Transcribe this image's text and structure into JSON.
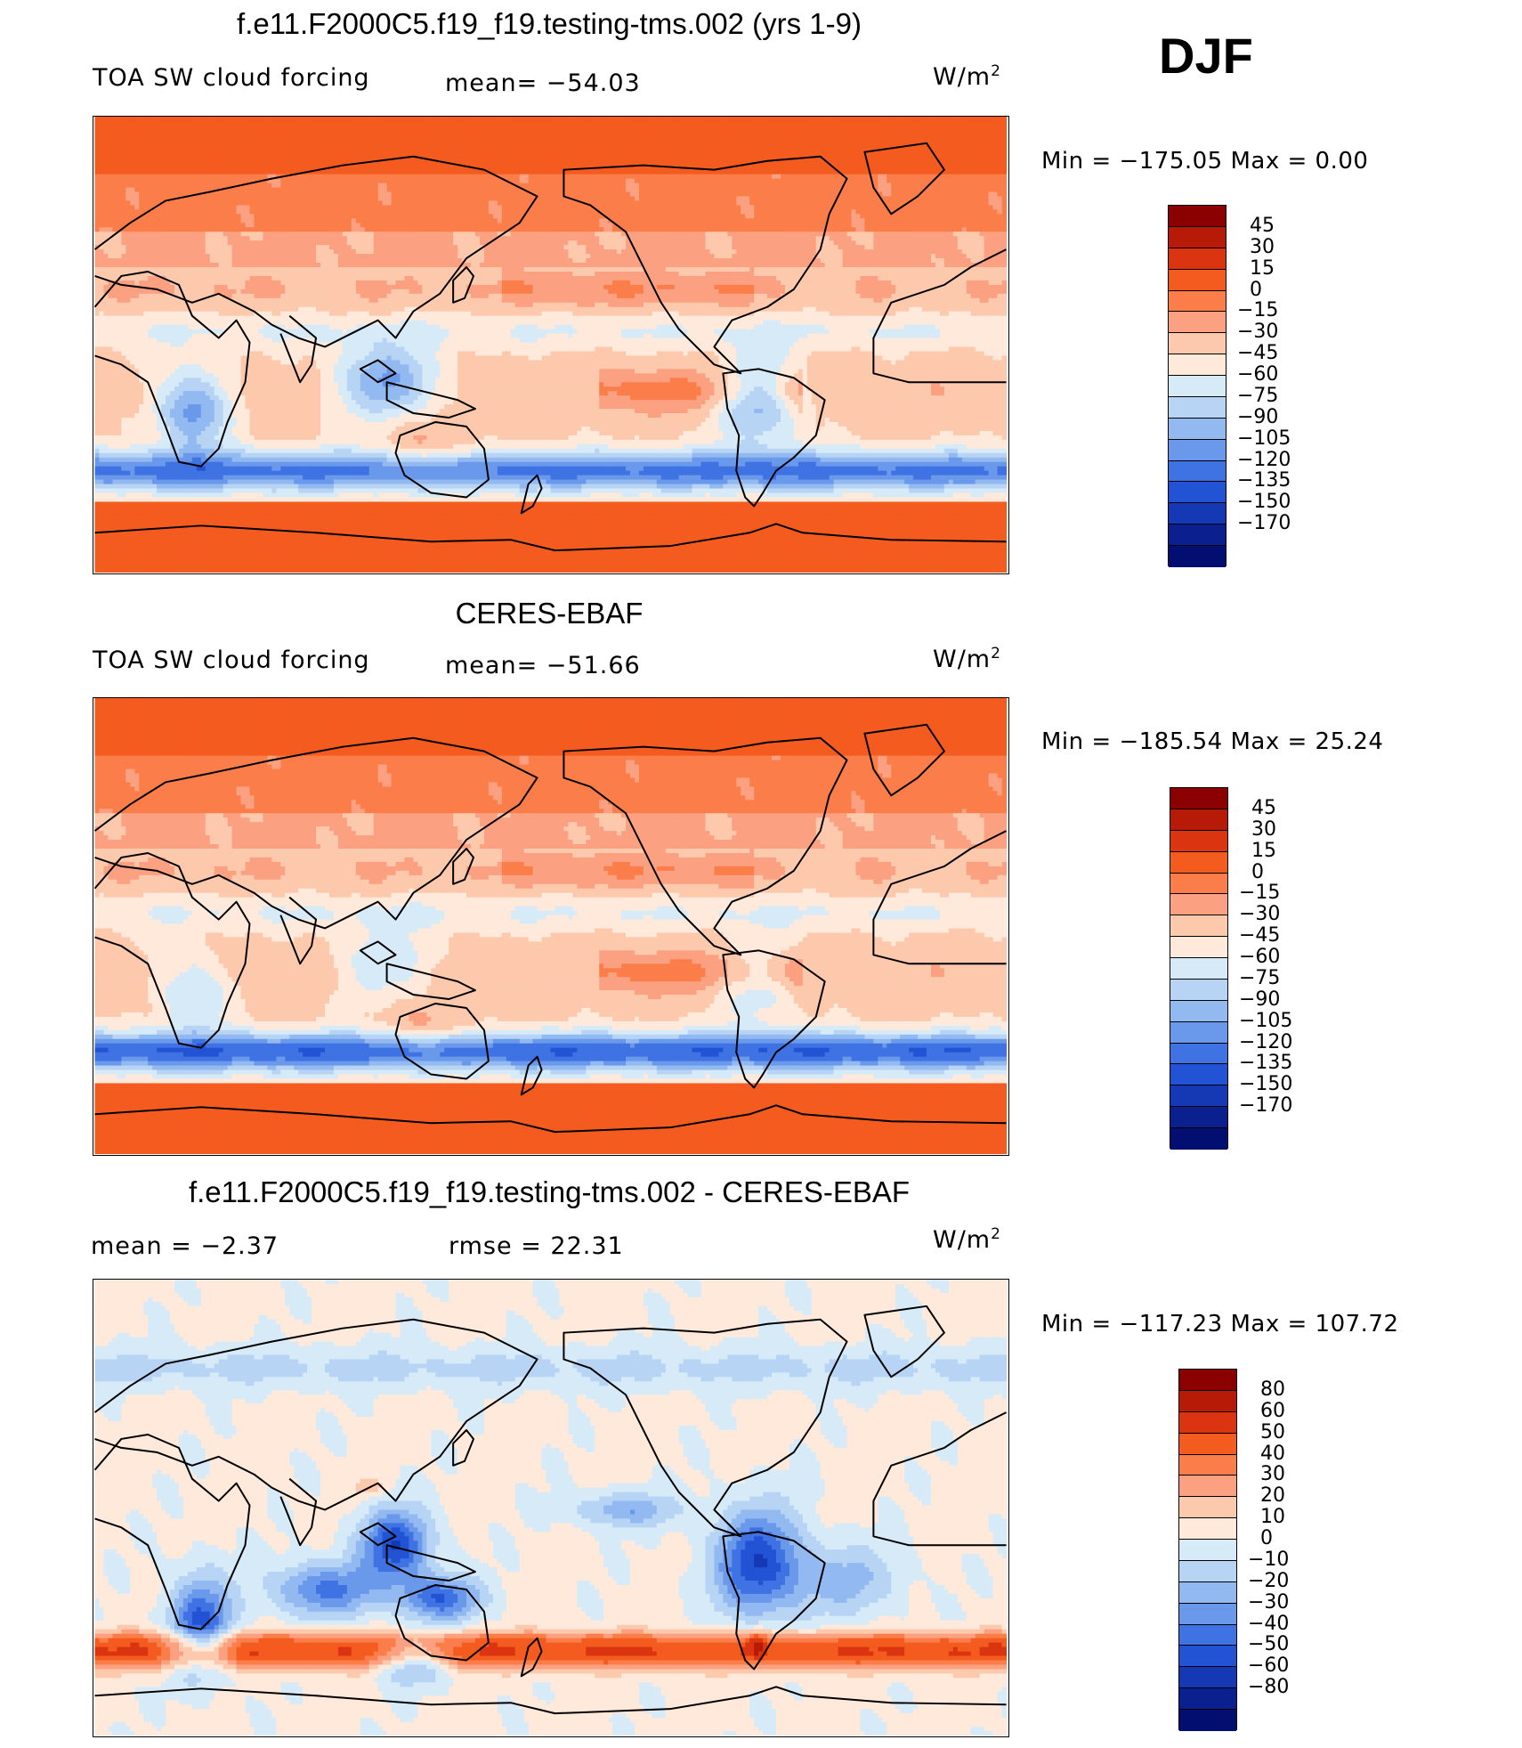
{
  "season": "DJF",
  "units_label": "W/m",
  "units_sup": "2",
  "panels": [
    {
      "id": "model",
      "title": "f.e11.F2000C5.f19_f19.testing-tms.002 (yrs 1-9)",
      "left_label": "TOA SW cloud forcing",
      "stat_label": "mean=  −54.03",
      "range_text": "Min  =  −175.05  Max  =     0.00",
      "map_kind": "model"
    },
    {
      "id": "obs",
      "title": "CERES-EBAF",
      "left_label": "TOA SW cloud forcing",
      "stat_label": "mean=  −51.66",
      "range_text": "Min  =  −185.54  Max  =   25.24",
      "map_kind": "obs"
    },
    {
      "id": "diff",
      "title": "f.e11.F2000C5.f19_f19.testing-tms.002 - CERES-EBAF",
      "left_label": "mean  =    −2.37",
      "stat_label": "rmse  =    22.31",
      "range_text": "Min  =  −117.23  Max  =  107.72",
      "map_kind": "diff"
    }
  ],
  "colorbars": {
    "abs": {
      "colors": [
        "#8b0000",
        "#b71a06",
        "#db3410",
        "#f45b1f",
        "#fb7e4a",
        "#fca082",
        "#fdc9ad",
        "#fee9da",
        "#d6eaf8",
        "#b8d4f5",
        "#93b9f1",
        "#6a98ea",
        "#3f72e2",
        "#2253d4",
        "#1538b5",
        "#0a208f",
        "#020f70"
      ],
      "ticks": [
        "45",
        "30",
        "15",
        "0",
        "−15",
        "−30",
        "−45",
        "−60",
        "−75",
        "−90",
        "−105",
        "−120",
        "−135",
        "−150",
        "−170"
      ]
    },
    "diff": {
      "colors": [
        "#8b0000",
        "#b71a06",
        "#db3410",
        "#f45b1f",
        "#fb7e4a",
        "#fca082",
        "#fdc9ad",
        "#fee9da",
        "#d6eaf8",
        "#b8d4f5",
        "#93b9f1",
        "#6a98ea",
        "#3f72e2",
        "#2253d4",
        "#1538b5",
        "#0a208f",
        "#020f70"
      ],
      "ticks": [
        "80",
        "60",
        "50",
        "40",
        "30",
        "20",
        "10",
        "0",
        "−10",
        "−20",
        "−30",
        "−40",
        "−50",
        "−60",
        "−80"
      ]
    }
  }
}
